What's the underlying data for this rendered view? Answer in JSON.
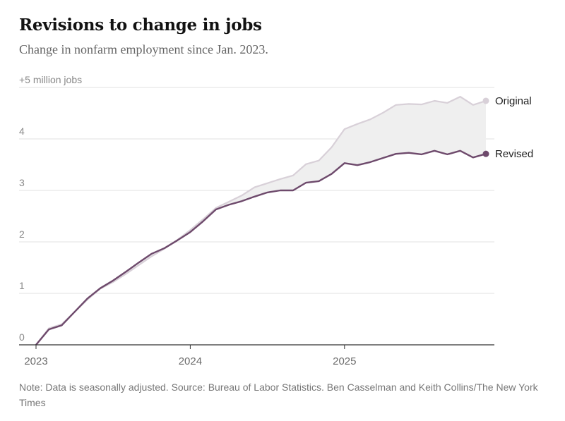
{
  "header": {
    "title": "Revisions to change in jobs",
    "subtitle": "Change in nonfarm employment since Jan. 2023."
  },
  "footer": {
    "note": "Note: Data is seasonally adjusted.  Source: Bureau of Labor Statistics.  Ben Casselman and Keith Collins/The New York Times"
  },
  "colors": {
    "original": "#d8d0d8",
    "revised": "#6e4a6c",
    "gap_fill": "#efefef",
    "gridline": "#e2e2e2",
    "axis": "#333333"
  },
  "chart_data": {
    "type": "area",
    "title": "Revisions to change in jobs",
    "subtitle": "Change in nonfarm employment since Jan. 2023.",
    "xlabel": "",
    "ylabel": "+5 million jobs",
    "ylim": [
      0,
      5
    ],
    "yticks": [
      {
        "value": 0,
        "label": "0"
      },
      {
        "value": 1,
        "label": "1"
      },
      {
        "value": 2,
        "label": "2"
      },
      {
        "value": 3,
        "label": "3"
      },
      {
        "value": 4,
        "label": "4"
      },
      {
        "value": 5,
        "label": "+5 million jobs"
      }
    ],
    "xticks": [
      {
        "index": 0,
        "label": "2023"
      },
      {
        "index": 12,
        "label": "2024"
      },
      {
        "index": 24,
        "label": "2025"
      }
    ],
    "x": [
      "2023-01",
      "2023-02",
      "2023-03",
      "2023-04",
      "2023-05",
      "2023-06",
      "2023-07",
      "2023-08",
      "2023-09",
      "2023-10",
      "2023-11",
      "2023-12",
      "2024-01",
      "2024-02",
      "2024-03",
      "2024-04",
      "2024-05",
      "2024-06",
      "2024-07",
      "2024-08",
      "2024-09",
      "2024-10",
      "2024-11",
      "2024-12",
      "2025-01",
      "2025-02",
      "2025-03",
      "2025-04",
      "2025-05",
      "2025-06",
      "2025-07",
      "2025-08",
      "2025-09",
      "2025-10",
      "2025-11",
      "2025-12"
    ],
    "grid": true,
    "legend": "right-end labels",
    "series": [
      {
        "name": "Original",
        "values": [
          0,
          0.32,
          0.4,
          0.64,
          0.88,
          1.09,
          1.22,
          1.38,
          1.55,
          1.72,
          1.87,
          2.04,
          2.23,
          2.44,
          2.66,
          2.78,
          2.9,
          3.06,
          3.14,
          3.22,
          3.29,
          3.51,
          3.58,
          3.84,
          4.19,
          4.29,
          4.38,
          4.51,
          4.66,
          4.68,
          4.67,
          4.74,
          4.7,
          4.82,
          4.66,
          4.74
        ]
      },
      {
        "name": "Revised",
        "values": [
          0,
          0.3,
          0.38,
          0.64,
          0.9,
          1.1,
          1.25,
          1.42,
          1.6,
          1.77,
          1.88,
          2.03,
          2.19,
          2.4,
          2.63,
          2.72,
          2.79,
          2.88,
          2.96,
          3.0,
          3.0,
          3.15,
          3.18,
          3.32,
          3.53,
          3.49,
          3.55,
          3.63,
          3.71,
          3.73,
          3.7,
          3.77,
          3.7,
          3.77,
          3.64,
          3.71
        ]
      }
    ]
  }
}
